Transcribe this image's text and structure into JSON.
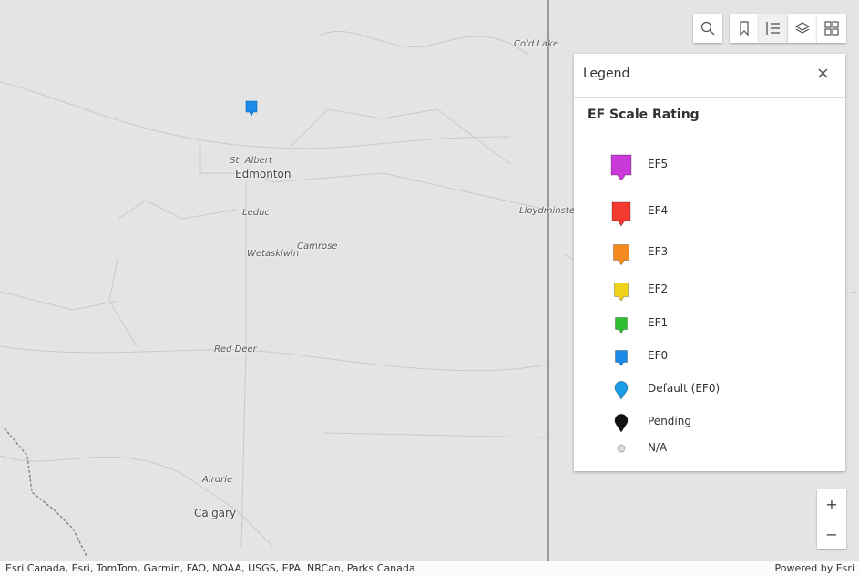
{
  "map": {
    "place_labels": [
      "Cold Lake",
      "St. Albert",
      "Edmonton",
      "Leduc",
      "Lloydminster",
      "Wetaskiwin",
      "Camrose",
      "Red Deer",
      "Airdrie",
      "Calgary"
    ],
    "attribution": "Esri Canada, Esri, TomTom, Garmin, FAO, NOAA, USGS, EPA, NRCan, Parks Canada",
    "powered_by": "Powered by Esri"
  },
  "zoom": {
    "in": "+",
    "out": "−"
  },
  "legend": {
    "title": "Legend",
    "close": "×",
    "layer_title": "EF Scale Rating",
    "items": [
      "EF5",
      "EF4",
      "EF3",
      "EF2",
      "EF1",
      "EF0",
      "Default (EF0)",
      "Pending",
      "N/A"
    ]
  }
}
